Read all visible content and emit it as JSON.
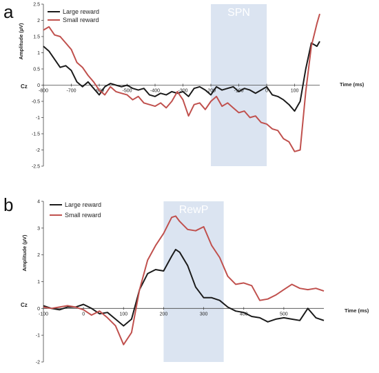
{
  "colors": {
    "large": "#1a1a1a",
    "small": "#c0504d",
    "window": "#dbe4f1"
  },
  "chart_data": [
    {
      "type": "line",
      "panel_label": "a",
      "xlabel": "Time (ms)",
      "ylabel": "Amplitude (µV)",
      "channel": "Cz",
      "xlim": [
        -800,
        190
      ],
      "ylim": [
        -2.5,
        2.5
      ],
      "xticks": [
        -800,
        -700,
        -600,
        -500,
        -400,
        -300,
        -200,
        -100,
        0,
        100
      ],
      "yticks": [
        2.5,
        2,
        1.5,
        1,
        0.5,
        0,
        -0.5,
        -1,
        -1.5,
        -2,
        -2.5
      ],
      "window": {
        "label": "SPN",
        "x0": -200,
        "x1": 0
      },
      "legend": [
        "Large reward",
        "Small reward"
      ],
      "series": [
        {
          "name": "Large reward",
          "x": [
            -800,
            -780,
            -760,
            -740,
            -720,
            -700,
            -680,
            -660,
            -640,
            -620,
            -600,
            -580,
            -560,
            -540,
            -520,
            -500,
            -480,
            -460,
            -440,
            -420,
            -400,
            -380,
            -360,
            -340,
            -320,
            -300,
            -280,
            -260,
            -240,
            -220,
            -200,
            -180,
            -160,
            -140,
            -120,
            -100,
            -80,
            -60,
            -40,
            -20,
            0,
            20,
            40,
            60,
            80,
            100,
            120,
            140,
            160,
            180,
            190
          ],
          "y": [
            1.2,
            1.05,
            0.8,
            0.55,
            0.6,
            0.45,
            0.1,
            -0.05,
            0.1,
            -0.1,
            -0.3,
            -0.05,
            0.05,
            0.0,
            -0.05,
            0.0,
            -0.1,
            -0.15,
            -0.1,
            -0.3,
            -0.35,
            -0.25,
            -0.3,
            -0.2,
            -0.25,
            -0.2,
            -0.35,
            -0.1,
            -0.05,
            -0.15,
            -0.3,
            -0.05,
            -0.15,
            -0.1,
            -0.05,
            -0.2,
            -0.1,
            -0.15,
            -0.25,
            -0.15,
            -0.05,
            -0.3,
            -0.35,
            -0.45,
            -0.6,
            -0.8,
            -0.5,
            0.5,
            1.3,
            1.2,
            1.35
          ]
        },
        {
          "name": "Small reward",
          "x": [
            -800,
            -780,
            -760,
            -740,
            -720,
            -700,
            -680,
            -660,
            -640,
            -620,
            -600,
            -580,
            -560,
            -540,
            -520,
            -500,
            -480,
            -460,
            -440,
            -420,
            -400,
            -380,
            -360,
            -340,
            -320,
            -300,
            -280,
            -260,
            -240,
            -220,
            -200,
            -180,
            -160,
            -140,
            -120,
            -100,
            -80,
            -60,
            -40,
            -20,
            0,
            20,
            40,
            60,
            80,
            100,
            120,
            140,
            160,
            180,
            190
          ],
          "y": [
            1.7,
            1.8,
            1.55,
            1.5,
            1.3,
            1.1,
            0.7,
            0.55,
            0.3,
            0.1,
            -0.15,
            -0.3,
            -0.05,
            -0.2,
            -0.25,
            -0.3,
            -0.45,
            -0.35,
            -0.55,
            -0.6,
            -0.65,
            -0.55,
            -0.7,
            -0.5,
            -0.2,
            -0.45,
            -0.95,
            -0.6,
            -0.55,
            -0.75,
            -0.5,
            -0.35,
            -0.65,
            -0.55,
            -0.7,
            -0.85,
            -0.8,
            -1.0,
            -0.95,
            -1.15,
            -1.2,
            -1.35,
            -1.4,
            -1.65,
            -1.75,
            -2.05,
            -2.0,
            -0.2,
            1.2,
            1.9,
            2.2
          ]
        }
      ]
    },
    {
      "type": "line",
      "panel_label": "b",
      "xlabel": "Time (ms)",
      "ylabel": "Amplitude (µV)",
      "channel": "Cz",
      "xlim": [
        -100,
        600
      ],
      "ylim": [
        -2,
        4
      ],
      "xticks": [
        -100,
        0,
        100,
        200,
        300,
        400,
        500
      ],
      "yticks": [
        4,
        3,
        2,
        1,
        0,
        -1,
        -2
      ],
      "window": {
        "label": "RewP",
        "x0": 200,
        "x1": 350
      },
      "legend": [
        "Large reward",
        "Small reward"
      ],
      "series": [
        {
          "name": "Large reward",
          "x": [
            -100,
            -80,
            -60,
            -40,
            -20,
            0,
            20,
            40,
            60,
            80,
            100,
            120,
            140,
            160,
            180,
            200,
            220,
            230,
            240,
            260,
            280,
            300,
            320,
            340,
            360,
            380,
            400,
            420,
            440,
            460,
            480,
            500,
            520,
            540,
            560,
            580,
            600
          ],
          "y": [
            0.1,
            0.0,
            -0.05,
            0.05,
            0.05,
            0.15,
            0.0,
            -0.2,
            -0.15,
            -0.4,
            -0.65,
            -0.4,
            0.7,
            1.3,
            1.45,
            1.4,
            1.95,
            2.2,
            2.1,
            1.6,
            0.8,
            0.4,
            0.4,
            0.3,
            0.05,
            -0.1,
            -0.15,
            -0.3,
            -0.35,
            -0.5,
            -0.4,
            -0.35,
            -0.4,
            -0.45,
            0.0,
            -0.35,
            -0.45
          ]
        },
        {
          "name": "Small reward",
          "x": [
            -100,
            -80,
            -60,
            -40,
            -20,
            0,
            20,
            40,
            60,
            80,
            100,
            120,
            140,
            160,
            180,
            200,
            220,
            230,
            240,
            260,
            280,
            300,
            320,
            340,
            360,
            380,
            400,
            420,
            440,
            460,
            480,
            500,
            520,
            540,
            560,
            580,
            600
          ],
          "y": [
            0.05,
            0.0,
            0.05,
            0.1,
            0.05,
            -0.05,
            -0.25,
            -0.1,
            -0.35,
            -0.65,
            -1.35,
            -0.9,
            0.7,
            1.8,
            2.35,
            2.8,
            3.4,
            3.45,
            3.25,
            2.95,
            2.9,
            3.05,
            2.35,
            1.9,
            1.2,
            0.9,
            0.95,
            0.85,
            0.3,
            0.35,
            0.5,
            0.7,
            0.9,
            0.75,
            0.7,
            0.75,
            0.65
          ]
        }
      ]
    }
  ]
}
